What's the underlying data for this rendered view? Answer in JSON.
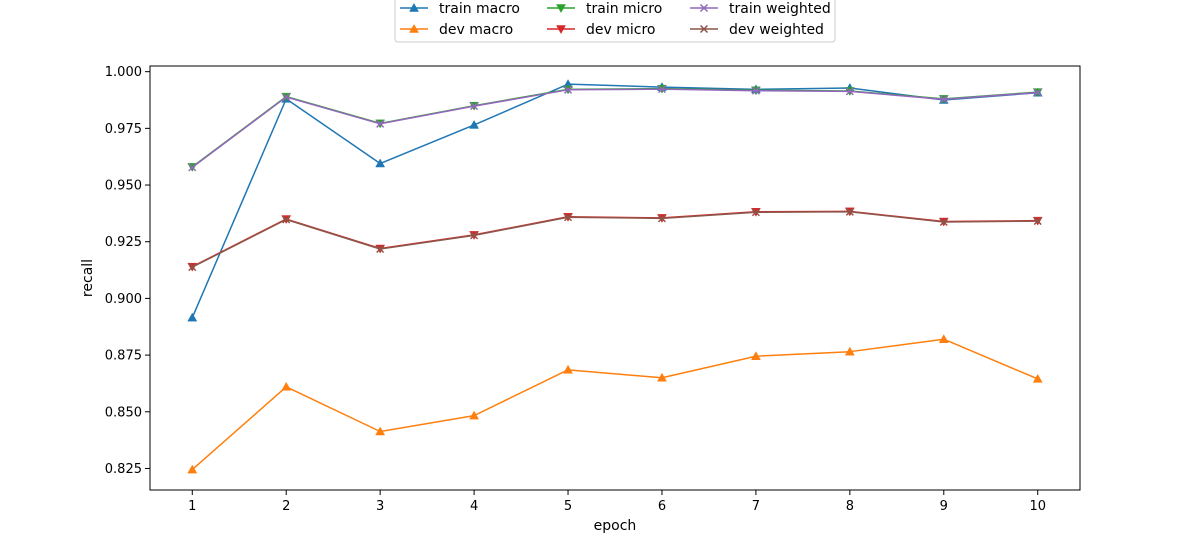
{
  "chart_data": {
    "type": "line",
    "title": "",
    "xlabel": "epoch",
    "ylabel": "recall",
    "x": [
      1,
      2,
      3,
      4,
      5,
      6,
      7,
      8,
      9,
      10
    ],
    "xlim": [
      0.55,
      10.45
    ],
    "ylim": [
      0.8155,
      1.0025
    ],
    "yticks": [
      0.825,
      0.85,
      0.875,
      0.9,
      0.925,
      0.95,
      0.975,
      1.0
    ],
    "ytick_labels": [
      "0.825",
      "0.850",
      "0.875",
      "0.900",
      "0.925",
      "0.950",
      "0.975",
      "1.000"
    ],
    "xtick_labels": [
      "1",
      "2",
      "3",
      "4",
      "5",
      "6",
      "7",
      "8",
      "9",
      "10"
    ],
    "grid": false,
    "legend_position": "top-center",
    "legend_columns": 3,
    "series": [
      {
        "name": "train macro",
        "color": "#1f77b4",
        "marker": "triangle-up",
        "values": [
          0.8915,
          0.988,
          0.9595,
          0.9765,
          0.9945,
          0.9932,
          0.9922,
          0.9928,
          0.9875,
          0.9907
        ]
      },
      {
        "name": "dev macro",
        "color": "#ff7f0e",
        "marker": "triangle-up",
        "values": [
          0.8245,
          0.861,
          0.8413,
          0.8483,
          0.8685,
          0.865,
          0.8745,
          0.8765,
          0.882,
          0.8645
        ]
      },
      {
        "name": "train micro",
        "color": "#2ca02c",
        "marker": "triangle-down",
        "values": [
          0.958,
          0.989,
          0.9772,
          0.985,
          0.9922,
          0.9925,
          0.9918,
          0.9915,
          0.988,
          0.991
        ]
      },
      {
        "name": "dev micro",
        "color": "#d62728",
        "marker": "triangle-down",
        "values": [
          0.914,
          0.935,
          0.922,
          0.928,
          0.936,
          0.9355,
          0.9382,
          0.9384,
          0.9339,
          0.9343
        ]
      },
      {
        "name": "train weighted",
        "color": "#9467bd",
        "marker": "x",
        "values": [
          0.9578,
          0.9888,
          0.977,
          0.9848,
          0.992,
          0.9923,
          0.9916,
          0.9913,
          0.9878,
          0.9908
        ]
      },
      {
        "name": "dev weighted",
        "color": "#8c564b",
        "marker": "x",
        "values": [
          0.9138,
          0.9348,
          0.9218,
          0.9278,
          0.9358,
          0.9353,
          0.938,
          0.9382,
          0.9337,
          0.9341
        ]
      }
    ]
  }
}
